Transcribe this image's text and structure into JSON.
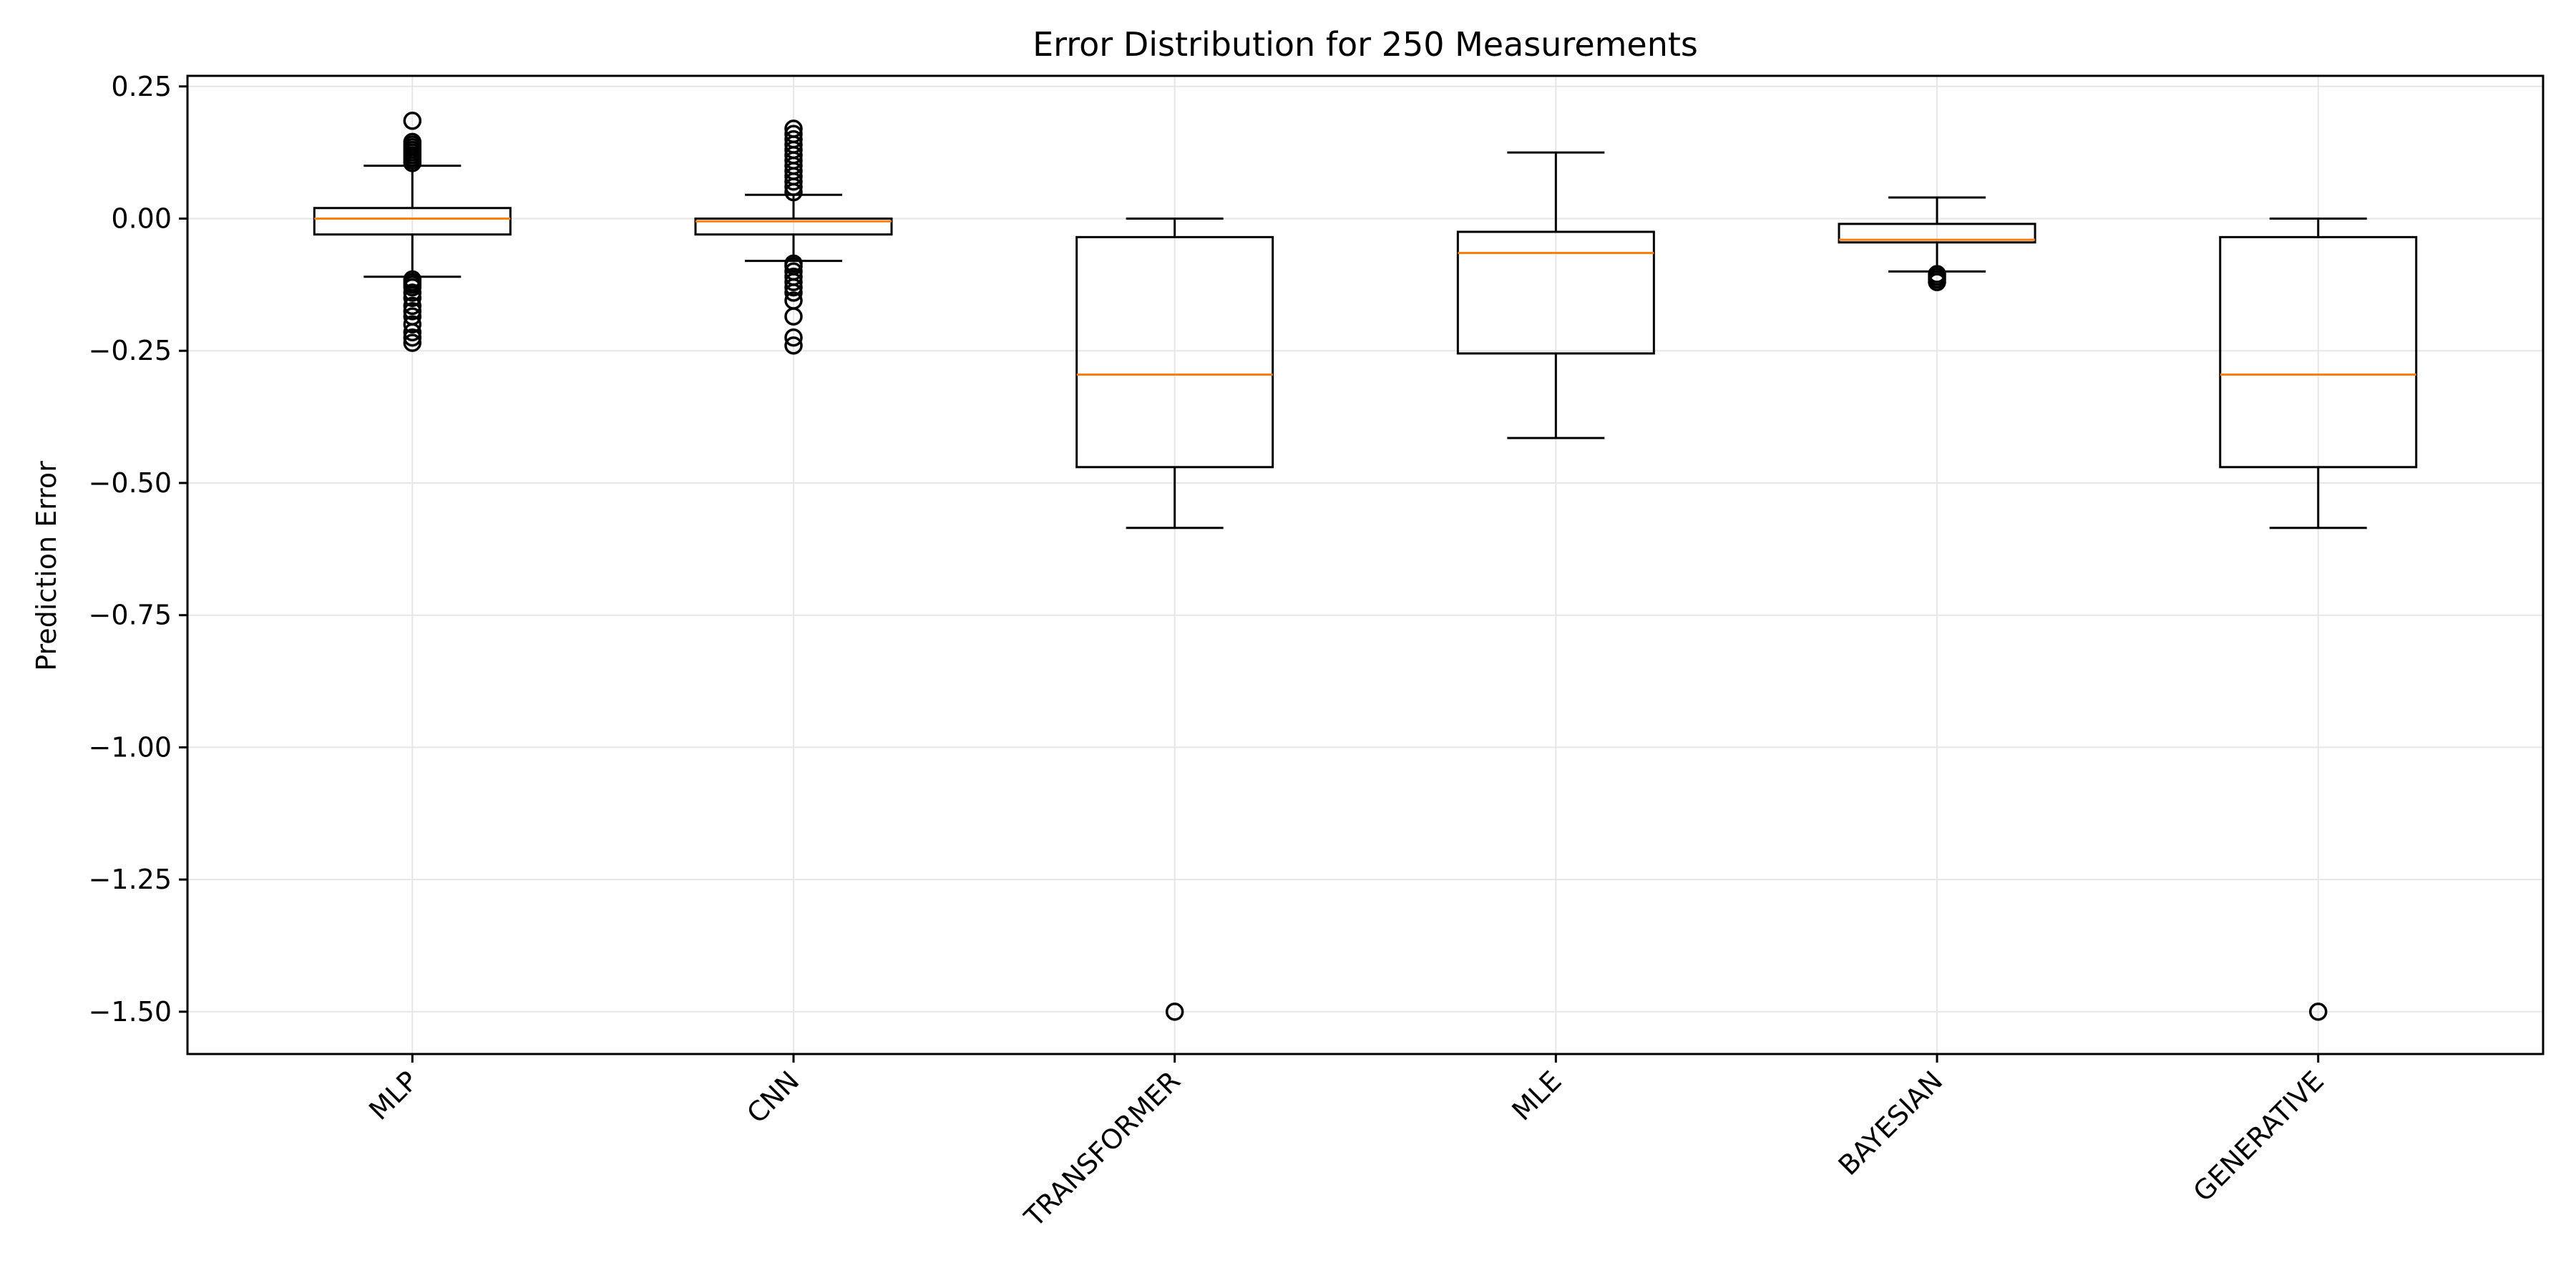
{
  "chart_data": {
    "type": "box",
    "title": "Error Distribution for 250 Measurements",
    "xlabel": "",
    "ylabel": "Prediction Error",
    "ylim": [
      -1.58,
      0.27
    ],
    "yticks": [
      0.25,
      0.0,
      -0.25,
      -0.5,
      -0.75,
      -1.0,
      -1.25,
      -1.5
    ],
    "ytick_labels": [
      "0.25",
      "0.00",
      "−0.25",
      "−0.50",
      "−0.75",
      "−1.00",
      "−1.25",
      "−1.50"
    ],
    "grid": true,
    "categories": [
      "MLP",
      "CNN",
      "TRANSFORMER",
      "MLE",
      "BAYESIAN",
      "GENERATIVE"
    ],
    "boxes": [
      {
        "category": "MLP",
        "whisker_low": -0.11,
        "q1": -0.03,
        "median": 0.0,
        "q3": 0.02,
        "whisker_high": 0.1,
        "outliers": [
          0.185,
          0.145,
          0.14,
          0.135,
          0.13,
          0.125,
          0.12,
          0.115,
          0.11,
          0.105,
          -0.115,
          -0.12,
          -0.125,
          -0.13,
          -0.14,
          -0.15,
          -0.165,
          -0.175,
          -0.185,
          -0.2,
          -0.215,
          -0.225,
          -0.235
        ]
      },
      {
        "category": "CNN",
        "whisker_low": -0.08,
        "q1": -0.03,
        "median": -0.005,
        "q3": 0.0,
        "whisker_high": 0.045,
        "outliers": [
          0.17,
          0.16,
          0.15,
          0.14,
          0.13,
          0.12,
          0.11,
          0.1,
          0.09,
          0.08,
          0.07,
          0.06,
          0.05,
          -0.085,
          -0.09,
          -0.1,
          -0.11,
          -0.12,
          -0.13,
          -0.14,
          -0.155,
          -0.185,
          -0.225,
          -0.24
        ]
      },
      {
        "category": "TRANSFORMER",
        "whisker_low": -0.585,
        "q1": -0.47,
        "median": -0.295,
        "q3": -0.035,
        "whisker_high": 0.0,
        "outliers": [
          -1.5
        ]
      },
      {
        "category": "MLE",
        "whisker_low": -0.415,
        "q1": -0.255,
        "median": -0.065,
        "q3": -0.025,
        "whisker_high": 0.125,
        "outliers": []
      },
      {
        "category": "BAYESIAN",
        "whisker_low": -0.1,
        "q1": -0.045,
        "median": -0.04,
        "q3": -0.01,
        "whisker_high": 0.04,
        "outliers": [
          -0.105,
          -0.11,
          -0.115,
          -0.12
        ]
      },
      {
        "category": "GENERATIVE",
        "whisker_low": -0.585,
        "q1": -0.47,
        "median": -0.295,
        "q3": -0.035,
        "whisker_high": 0.0,
        "outliers": [
          -1.5
        ]
      }
    ],
    "colors": {
      "box": "#000000",
      "median": "#ff7f0e",
      "grid": "#e6e6e6",
      "outlier": "#000000"
    }
  }
}
